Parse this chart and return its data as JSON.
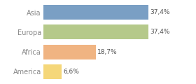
{
  "categories": [
    "America",
    "Africa",
    "Europa",
    "Asia"
  ],
  "values": [
    6.6,
    18.7,
    37.4,
    37.4
  ],
  "labels": [
    "6,6%",
    "18,7%",
    "37,4%",
    "37,4%"
  ],
  "bar_colors": [
    "#f5d77a",
    "#f0b482",
    "#b5c98a",
    "#7a9fc4"
  ],
  "background_color": "#ffffff",
  "xlim": [
    0,
    46
  ],
  "bar_height": 0.75,
  "label_fontsize": 6.5,
  "tick_fontsize": 7.0,
  "tick_color": "#888888",
  "label_color": "#555555",
  "spine_color": "#cccccc"
}
